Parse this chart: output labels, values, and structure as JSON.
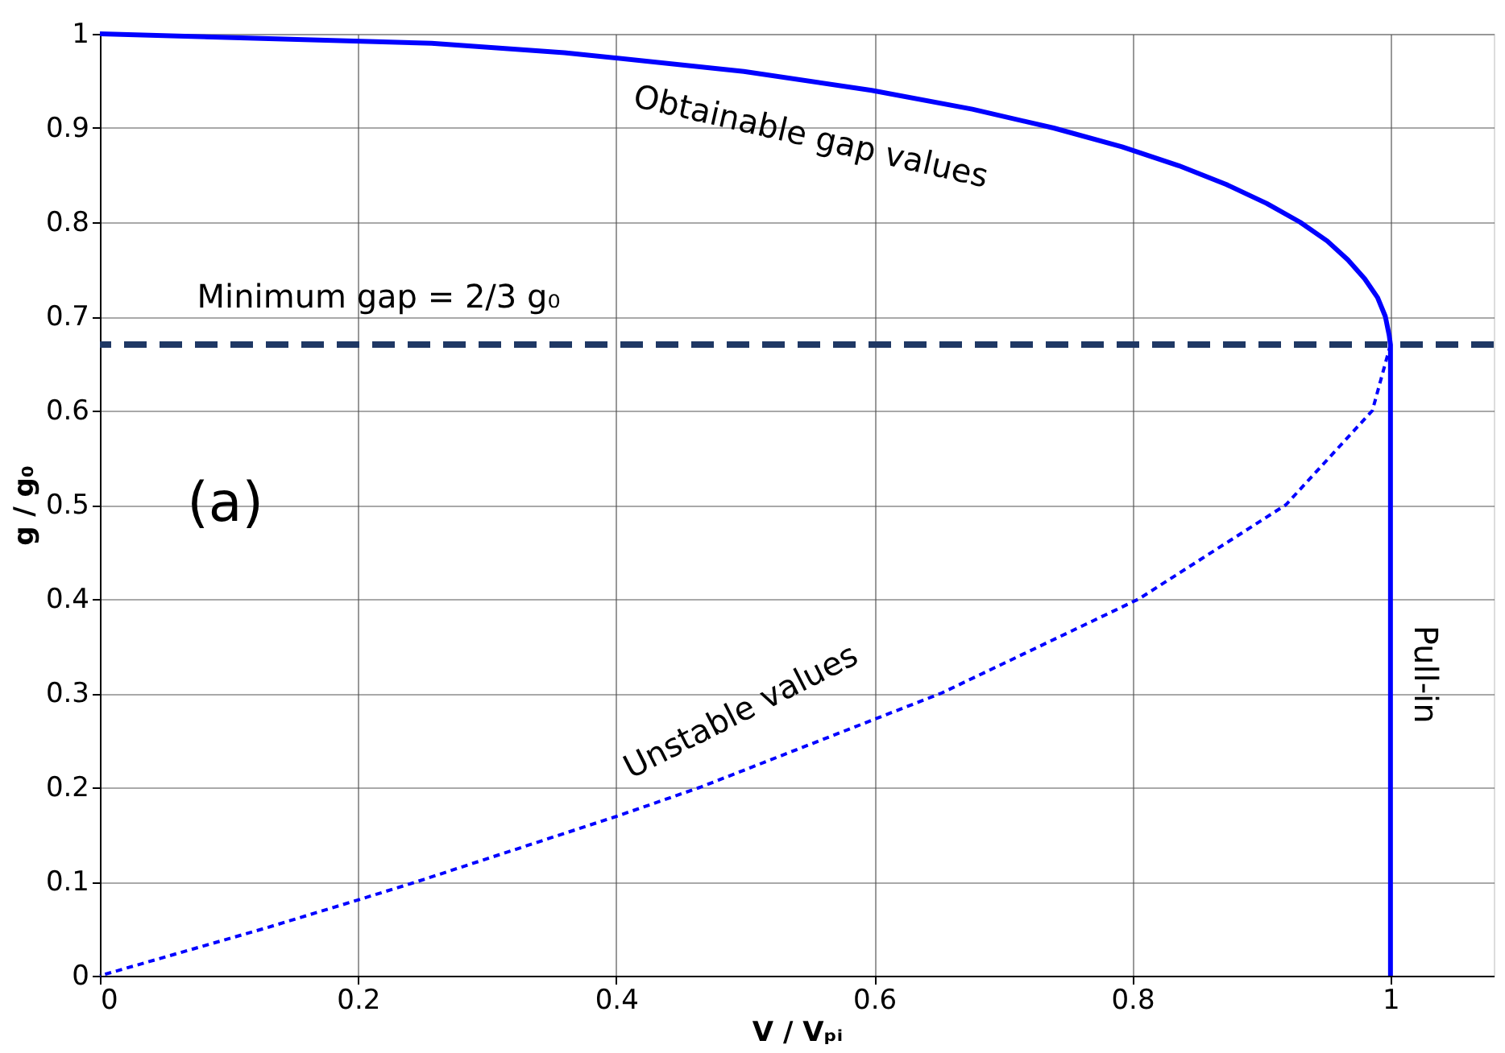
{
  "chart_data": {
    "type": "line",
    "xlabel": "V / Vₚᵢ",
    "ylabel": "g / g₀",
    "xlim": [
      0,
      1.08
    ],
    "ylim": [
      0,
      1
    ],
    "xticks": [
      0,
      0.2,
      0.4,
      0.6,
      0.8,
      1
    ],
    "yticks": [
      0,
      0.1,
      0.2,
      0.3,
      0.4,
      0.5,
      0.6,
      0.7,
      0.8,
      0.9,
      1
    ],
    "grid": true,
    "marker": "none",
    "series": [
      {
        "color": "#0000ff",
        "line_style": "solid",
        "x": [
          0,
          0.257,
          0.36,
          0.499,
          0.598,
          0.676,
          0.739,
          0.792,
          0.836,
          0.873,
          0.904,
          0.93,
          0.951,
          0.967,
          0.98,
          0.99,
          0.996,
          0.999,
          1,
          1
        ],
        "values": [
          1,
          0.99,
          0.98,
          0.96,
          0.94,
          0.92,
          0.9,
          0.88,
          0.86,
          0.84,
          0.82,
          0.8,
          0.78,
          0.76,
          0.74,
          0.72,
          0.7,
          0.68,
          0.67,
          0
        ]
      },
      {
        "color": "#0000ff",
        "line_style": "dashed",
        "x": [
          1,
          0.986,
          0.919,
          0.805,
          0.652,
          0.465,
          0.402,
          0.246,
          0.199,
          0.127,
          0
        ],
        "values": [
          0.67,
          0.6,
          0.5,
          0.4,
          0.3,
          0.2,
          0.17,
          0.1,
          0.08,
          0.05,
          0
        ]
      }
    ],
    "ref_lines": [
      {
        "axis": "y",
        "value": 0.67,
        "color": "#1f3864",
        "line_style": "dashed"
      }
    ],
    "annotations": [
      "Obtainable gap values",
      "Unstable values",
      "Pull-in",
      "(a)",
      "Minimum gap = 2/3 g₀"
    ]
  }
}
